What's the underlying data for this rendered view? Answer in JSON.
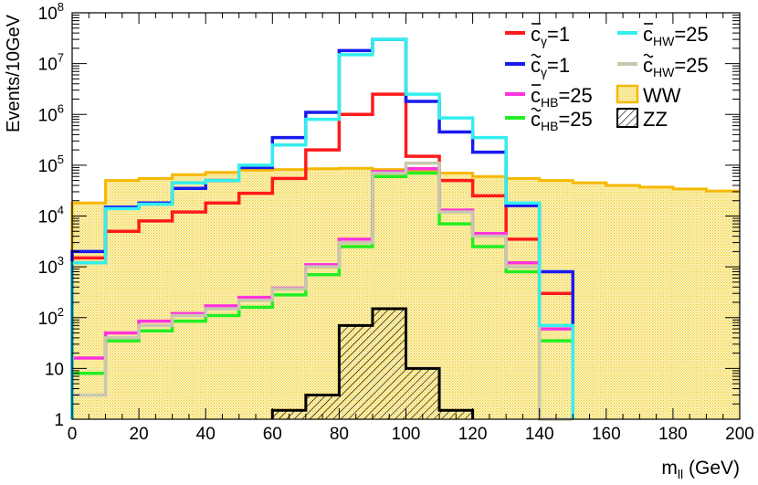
{
  "chart_data": {
    "type": "line",
    "subtype": "step-histogram",
    "xlabel": "m",
    "xlabel_sub": "ll",
    "xlabel_unit": " (GeV)",
    "ylabel": "Events/10GeV",
    "xlim": [
      0,
      200
    ],
    "ylim": [
      1,
      100000000
    ],
    "yscale": "log",
    "grid": false,
    "legend_position": "top-right",
    "x_ticks": [
      "0",
      "20",
      "40",
      "60",
      "80",
      "100",
      "120",
      "140",
      "160",
      "180",
      "200"
    ],
    "y_ticks": [
      {
        "value": 1,
        "base": "1",
        "exp": ""
      },
      {
        "value": 10,
        "base": "10",
        "exp": ""
      },
      {
        "value": 100,
        "base": "10",
        "exp": "2"
      },
      {
        "value": 1000,
        "base": "10",
        "exp": "3"
      },
      {
        "value": 10000,
        "base": "10",
        "exp": "4"
      },
      {
        "value": 100000,
        "base": "10",
        "exp": "5"
      },
      {
        "value": 1000000,
        "base": "10",
        "exp": "6"
      },
      {
        "value": 10000000,
        "base": "10",
        "exp": "7"
      },
      {
        "value": 100000000,
        "base": "10",
        "exp": "8"
      }
    ],
    "bin_edges": [
      0,
      10,
      20,
      30,
      40,
      50,
      60,
      70,
      80,
      90,
      100,
      110,
      120,
      130,
      140,
      150,
      160,
      170,
      180,
      190,
      200
    ],
    "series": [
      {
        "name": "WW",
        "prefix": "",
        "sub": "",
        "legend_value": "",
        "legend_col": 1,
        "legend_row": 2,
        "style": "filled",
        "color": "#f5b800",
        "fill": "#fbf1b4",
        "values": [
          18000,
          50000,
          55000,
          65000,
          72000,
          80000,
          82000,
          85000,
          87000,
          82000,
          78000,
          70000,
          60000,
          55000,
          50000,
          45000,
          40000,
          37000,
          34000,
          31000
        ]
      },
      {
        "name": "ZZ",
        "prefix": "",
        "sub": "",
        "legend_value": "",
        "legend_col": 1,
        "legend_row": 3,
        "style": "hatched",
        "color": "#000000",
        "values": [
          0,
          0,
          0,
          0,
          0,
          0,
          1.5,
          3,
          70,
          150,
          10,
          1.5,
          0,
          0,
          0,
          0,
          0,
          0,
          0,
          0
        ]
      },
      {
        "name": "c",
        "prefix": "bar",
        "sub": "γ",
        "legend_value": "=1",
        "legend_col": 0,
        "legend_row": 0,
        "style": "line",
        "color": "#ff1a1a",
        "values": [
          1500,
          5000,
          8000,
          12000,
          18000,
          28000,
          55000,
          200000,
          1000000,
          2500000,
          150000,
          50000,
          25000,
          3500,
          300,
          0,
          0,
          0,
          0,
          0
        ]
      },
      {
        "name": "c",
        "prefix": "tilde",
        "sub": "γ",
        "legend_value": "=1",
        "legend_col": 0,
        "legend_row": 1,
        "style": "line",
        "color": "#1a1aee",
        "values": [
          2000,
          15000,
          18000,
          35000,
          50000,
          90000,
          350000,
          1100000,
          18000000,
          30000000,
          1800000,
          450000,
          180000,
          16000,
          800,
          0,
          0,
          0,
          0,
          0
        ]
      },
      {
        "name": "c",
        "prefix": "tilde",
        "sub": "HB",
        "legend_value": "=25",
        "legend_col": 0,
        "legend_row": 3,
        "style": "line",
        "color": "#22ee22",
        "values": [
          8,
          35,
          55,
          85,
          110,
          160,
          280,
          700,
          2500,
          60000,
          70000,
          7000,
          2500,
          800,
          35,
          0,
          0,
          0,
          0,
          0
        ]
      },
      {
        "name": "c",
        "prefix": "bar",
        "sub": "HB",
        "legend_value": "=25",
        "legend_col": 0,
        "legend_row": 2,
        "style": "line",
        "color": "#ff33dd",
        "values": [
          16,
          50,
          85,
          120,
          170,
          250,
          380,
          1100,
          3500,
          75000,
          85000,
          13000,
          4500,
          1200,
          60,
          0,
          0,
          0,
          0,
          0
        ]
      },
      {
        "name": "c",
        "prefix": "tilde",
        "sub": "HW",
        "legend_value": "=25",
        "legend_col": 1,
        "legend_row": 1,
        "style": "line",
        "color": "#c8c8b0",
        "values": [
          3,
          40,
          70,
          110,
          150,
          220,
          370,
          1000,
          3000,
          70000,
          110000,
          12000,
          4000,
          1000,
          1,
          0,
          0,
          0,
          0,
          0
        ]
      },
      {
        "name": "c",
        "prefix": "bar",
        "sub": "HW",
        "legend_value": "=25",
        "legend_col": 1,
        "legend_row": 0,
        "style": "line",
        "color": "#33eeee",
        "values": [
          1200,
          14000,
          17000,
          45000,
          50000,
          100000,
          250000,
          800000,
          15000000,
          30000000,
          2500000,
          850000,
          350000,
          18000,
          70,
          0,
          0,
          0,
          0,
          0
        ]
      }
    ]
  }
}
